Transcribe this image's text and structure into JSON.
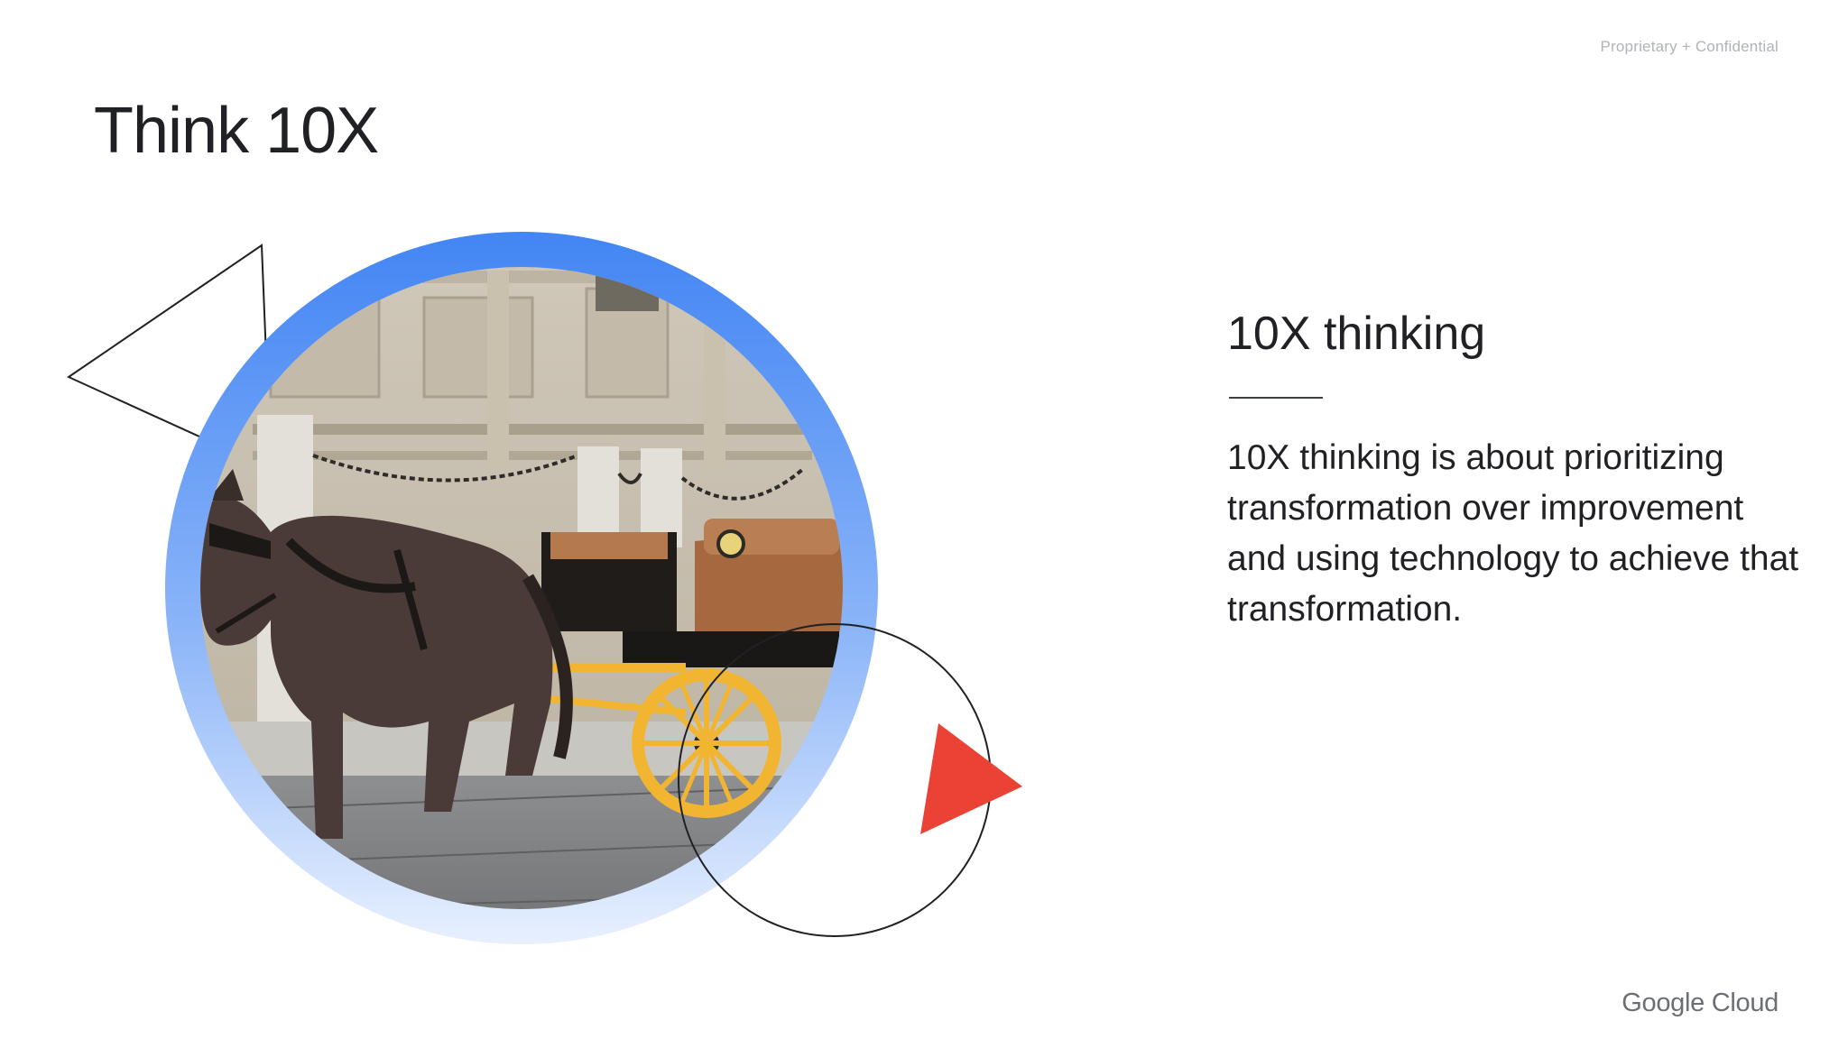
{
  "header": {
    "confidential_label": "Proprietary + Confidential",
    "title": "Think 10X"
  },
  "content": {
    "section_title": "10X thinking",
    "body": "10X thinking is about prioritizing transformation over improvement and using technology to achieve that transformation."
  },
  "footer": {
    "brand": "Google Cloud"
  },
  "art": {
    "photo_subject": "horse-drawn-carriage",
    "ring_gradient_top": "#4285f4",
    "ring_gradient_bottom": "#e8f0fe",
    "accent_triangle_color": "#ea4335",
    "outline_color": "#202124",
    "wheel_color": "#f2b531",
    "horse_color": "#4a3b38",
    "carriage_seat_color": "#a5683f"
  }
}
